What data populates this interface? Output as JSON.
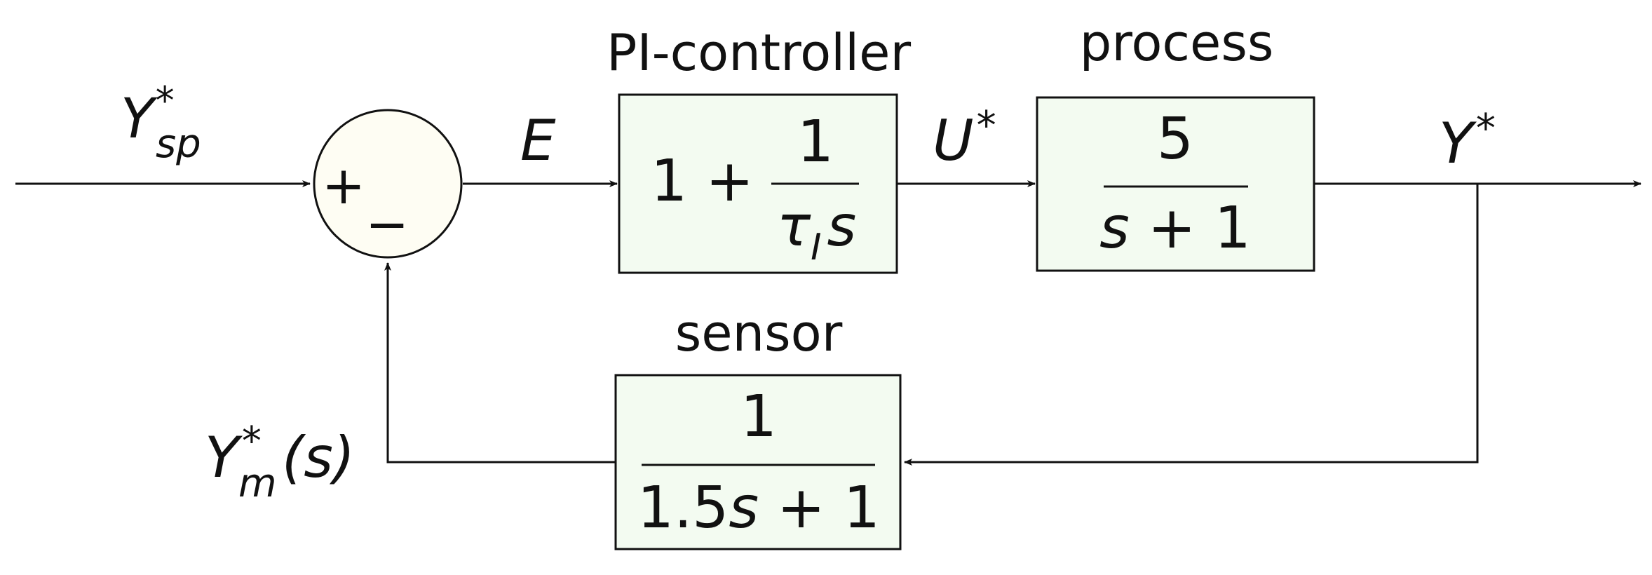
{
  "colors": {
    "line": "#111111",
    "block_fill": "#f3fbf1",
    "summing_fill": "#fefdf3",
    "background": "#ffffff"
  },
  "signals": {
    "setpoint": {
      "base": "Y",
      "sup": "*",
      "sub": "sp"
    },
    "error": "E",
    "control": {
      "base": "U",
      "sup": "*"
    },
    "output": {
      "base": "Y",
      "sup": "*"
    },
    "measured": {
      "base": "Y",
      "sup": "*",
      "sub": "m",
      "arg": "(s)"
    }
  },
  "summing_junction": {
    "plus": "+",
    "minus": "−"
  },
  "blocks": {
    "controller": {
      "title": "PI-controller",
      "lead": "1 +",
      "numerator": "1",
      "tau": "τ",
      "tau_sub": "I",
      "s": "s"
    },
    "process": {
      "title": "process",
      "numerator": "5",
      "denominator_s": "s",
      "denominator_rest": " + 1"
    },
    "sensor": {
      "title": "sensor",
      "numerator": "1",
      "denominator_coef": "1.5",
      "denominator_s": "s",
      "denominator_rest": " + 1"
    }
  }
}
